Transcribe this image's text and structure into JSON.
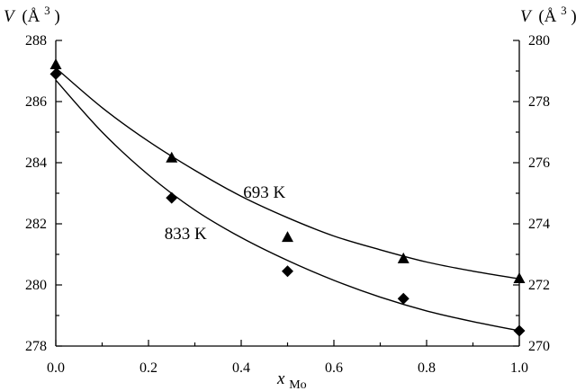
{
  "chart_data": {
    "type": "scatter",
    "x_axis": {
      "label_main": "x",
      "label_sub": "Mo",
      "ticks": [
        "0.0",
        "0.2",
        "0.4",
        "0.6",
        "0.8",
        "1.0"
      ],
      "range": [
        0,
        1
      ],
      "tick_step": 0.2,
      "minor_step": 0.1
    },
    "y_axis_left": {
      "label_main": "V",
      "label_unit": "(Å",
      "label_sup": "3",
      "label_close": ")",
      "ticks": [
        "278",
        "280",
        "282",
        "284",
        "286",
        "288"
      ],
      "range": [
        278,
        288
      ],
      "tick_step": 2,
      "minor_step": 1
    },
    "y_axis_right": {
      "label_main": "V",
      "label_unit": "(Å",
      "label_sup": "3",
      "label_close": ")",
      "ticks": [
        "270",
        "272",
        "274",
        "276",
        "278",
        "280"
      ],
      "range": [
        270,
        280
      ],
      "tick_step": 2,
      "minor_step": 1
    },
    "series": [
      {
        "name": "693 K",
        "axis": "right",
        "marker": "triangle",
        "x": [
          0.0,
          0.25,
          0.5,
          0.75,
          1.0
        ],
        "y": [
          279.2,
          276.15,
          273.55,
          272.85,
          272.2
        ],
        "fit_x": [
          0.0,
          0.1,
          0.2,
          0.3,
          0.4,
          0.5,
          0.6,
          0.7,
          0.8,
          0.9,
          1.0
        ],
        "fit_y": [
          279.1,
          277.8,
          276.7,
          275.75,
          274.9,
          274.2,
          273.6,
          273.15,
          272.75,
          272.45,
          272.2
        ]
      },
      {
        "name": "833 K",
        "axis": "left",
        "marker": "diamond",
        "x": [
          0.0,
          0.25,
          0.5,
          0.75,
          1.0
        ],
        "y": [
          286.9,
          282.85,
          280.45,
          279.55,
          278.5
        ],
        "fit_x": [
          0.0,
          0.1,
          0.2,
          0.3,
          0.4,
          0.5,
          0.6,
          0.7,
          0.8,
          0.9,
          1.0
        ],
        "fit_y": [
          286.7,
          285.0,
          283.6,
          282.45,
          281.55,
          280.8,
          280.15,
          279.6,
          279.15,
          278.8,
          278.5
        ]
      }
    ],
    "annotations": [
      {
        "text": "693 K",
        "series": "693 K",
        "x": 0.45,
        "y": 274.85
      },
      {
        "text": "833 K",
        "series": "833 K",
        "x": 0.28,
        "y": 281.5
      }
    ],
    "grid": false,
    "legend": "none"
  }
}
